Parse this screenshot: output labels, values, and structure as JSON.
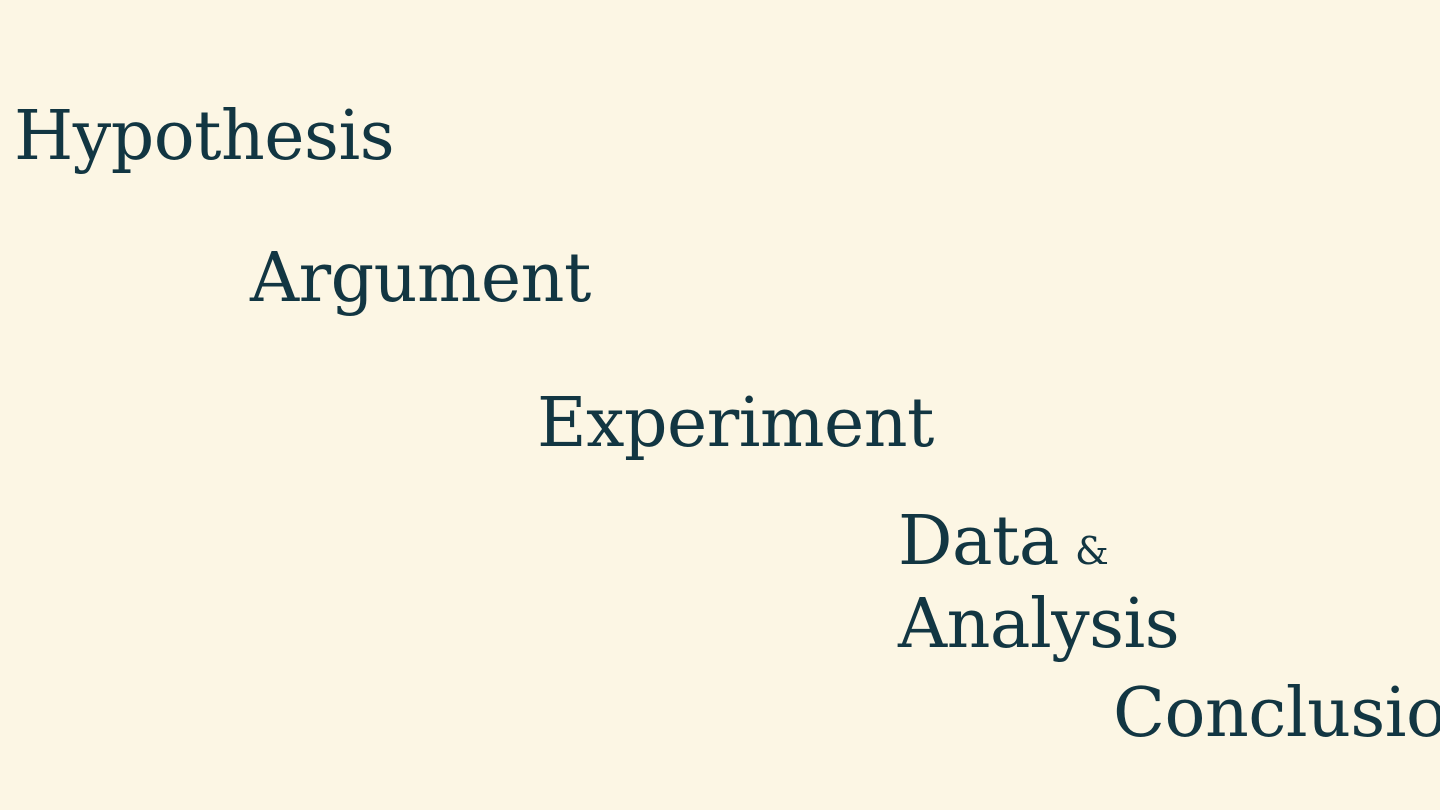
{
  "steps": {
    "hypothesis": "Hypothesis",
    "argument": "Argument",
    "experiment": "Experiment",
    "data": "Data",
    "ampersand": "&",
    "analysis": "Analysis",
    "conclusion": "Conclusion"
  },
  "colors": {
    "background": "#fcf6e4",
    "text": "#123642"
  }
}
